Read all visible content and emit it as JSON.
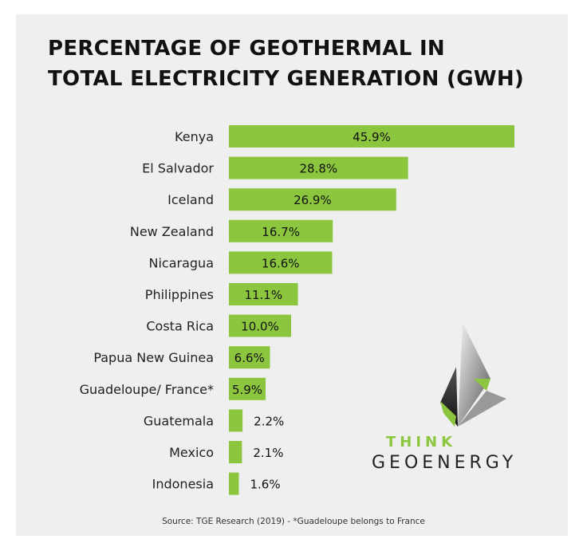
{
  "chart_data": {
    "type": "bar",
    "orientation": "horizontal",
    "title": "PERCENTAGE OF GEOTHERMAL IN TOTAL ELECTRICITY GENERATION (GWH)",
    "categories": [
      "Kenya",
      "El Salvador",
      "Iceland",
      "New Zealand",
      "Nicaragua",
      "Philippines",
      "Costa Rica",
      "Papua New Guinea",
      "Guadeloupe/ France*",
      "Guatemala",
      "Mexico",
      "Indonesia"
    ],
    "values": [
      45.9,
      28.8,
      26.9,
      16.7,
      16.6,
      11.1,
      10.0,
      6.6,
      5.9,
      2.2,
      2.1,
      1.6
    ],
    "value_labels": [
      "45.9%",
      "28.8%",
      "26.9%",
      "16.7%",
      "16.6%",
      "11.1%",
      "10.0%",
      "6.6%",
      "5.9%",
      "2.2%",
      "2.1%",
      "1.6%"
    ],
    "bar_color": "#8cc63f",
    "grid": false,
    "legend": "none"
  },
  "title_lines": [
    "PERCENTAGE OF GEOTHERMAL IN",
    "TOTAL ELECTRICITY GENERATION (GWH)"
  ],
  "source": "Source: TGE Research (2019) - *Guadeloupe belongs to France",
  "logo": {
    "line1": "THINK",
    "line2": "GEOENERGY",
    "accent": "#8cc63f"
  }
}
